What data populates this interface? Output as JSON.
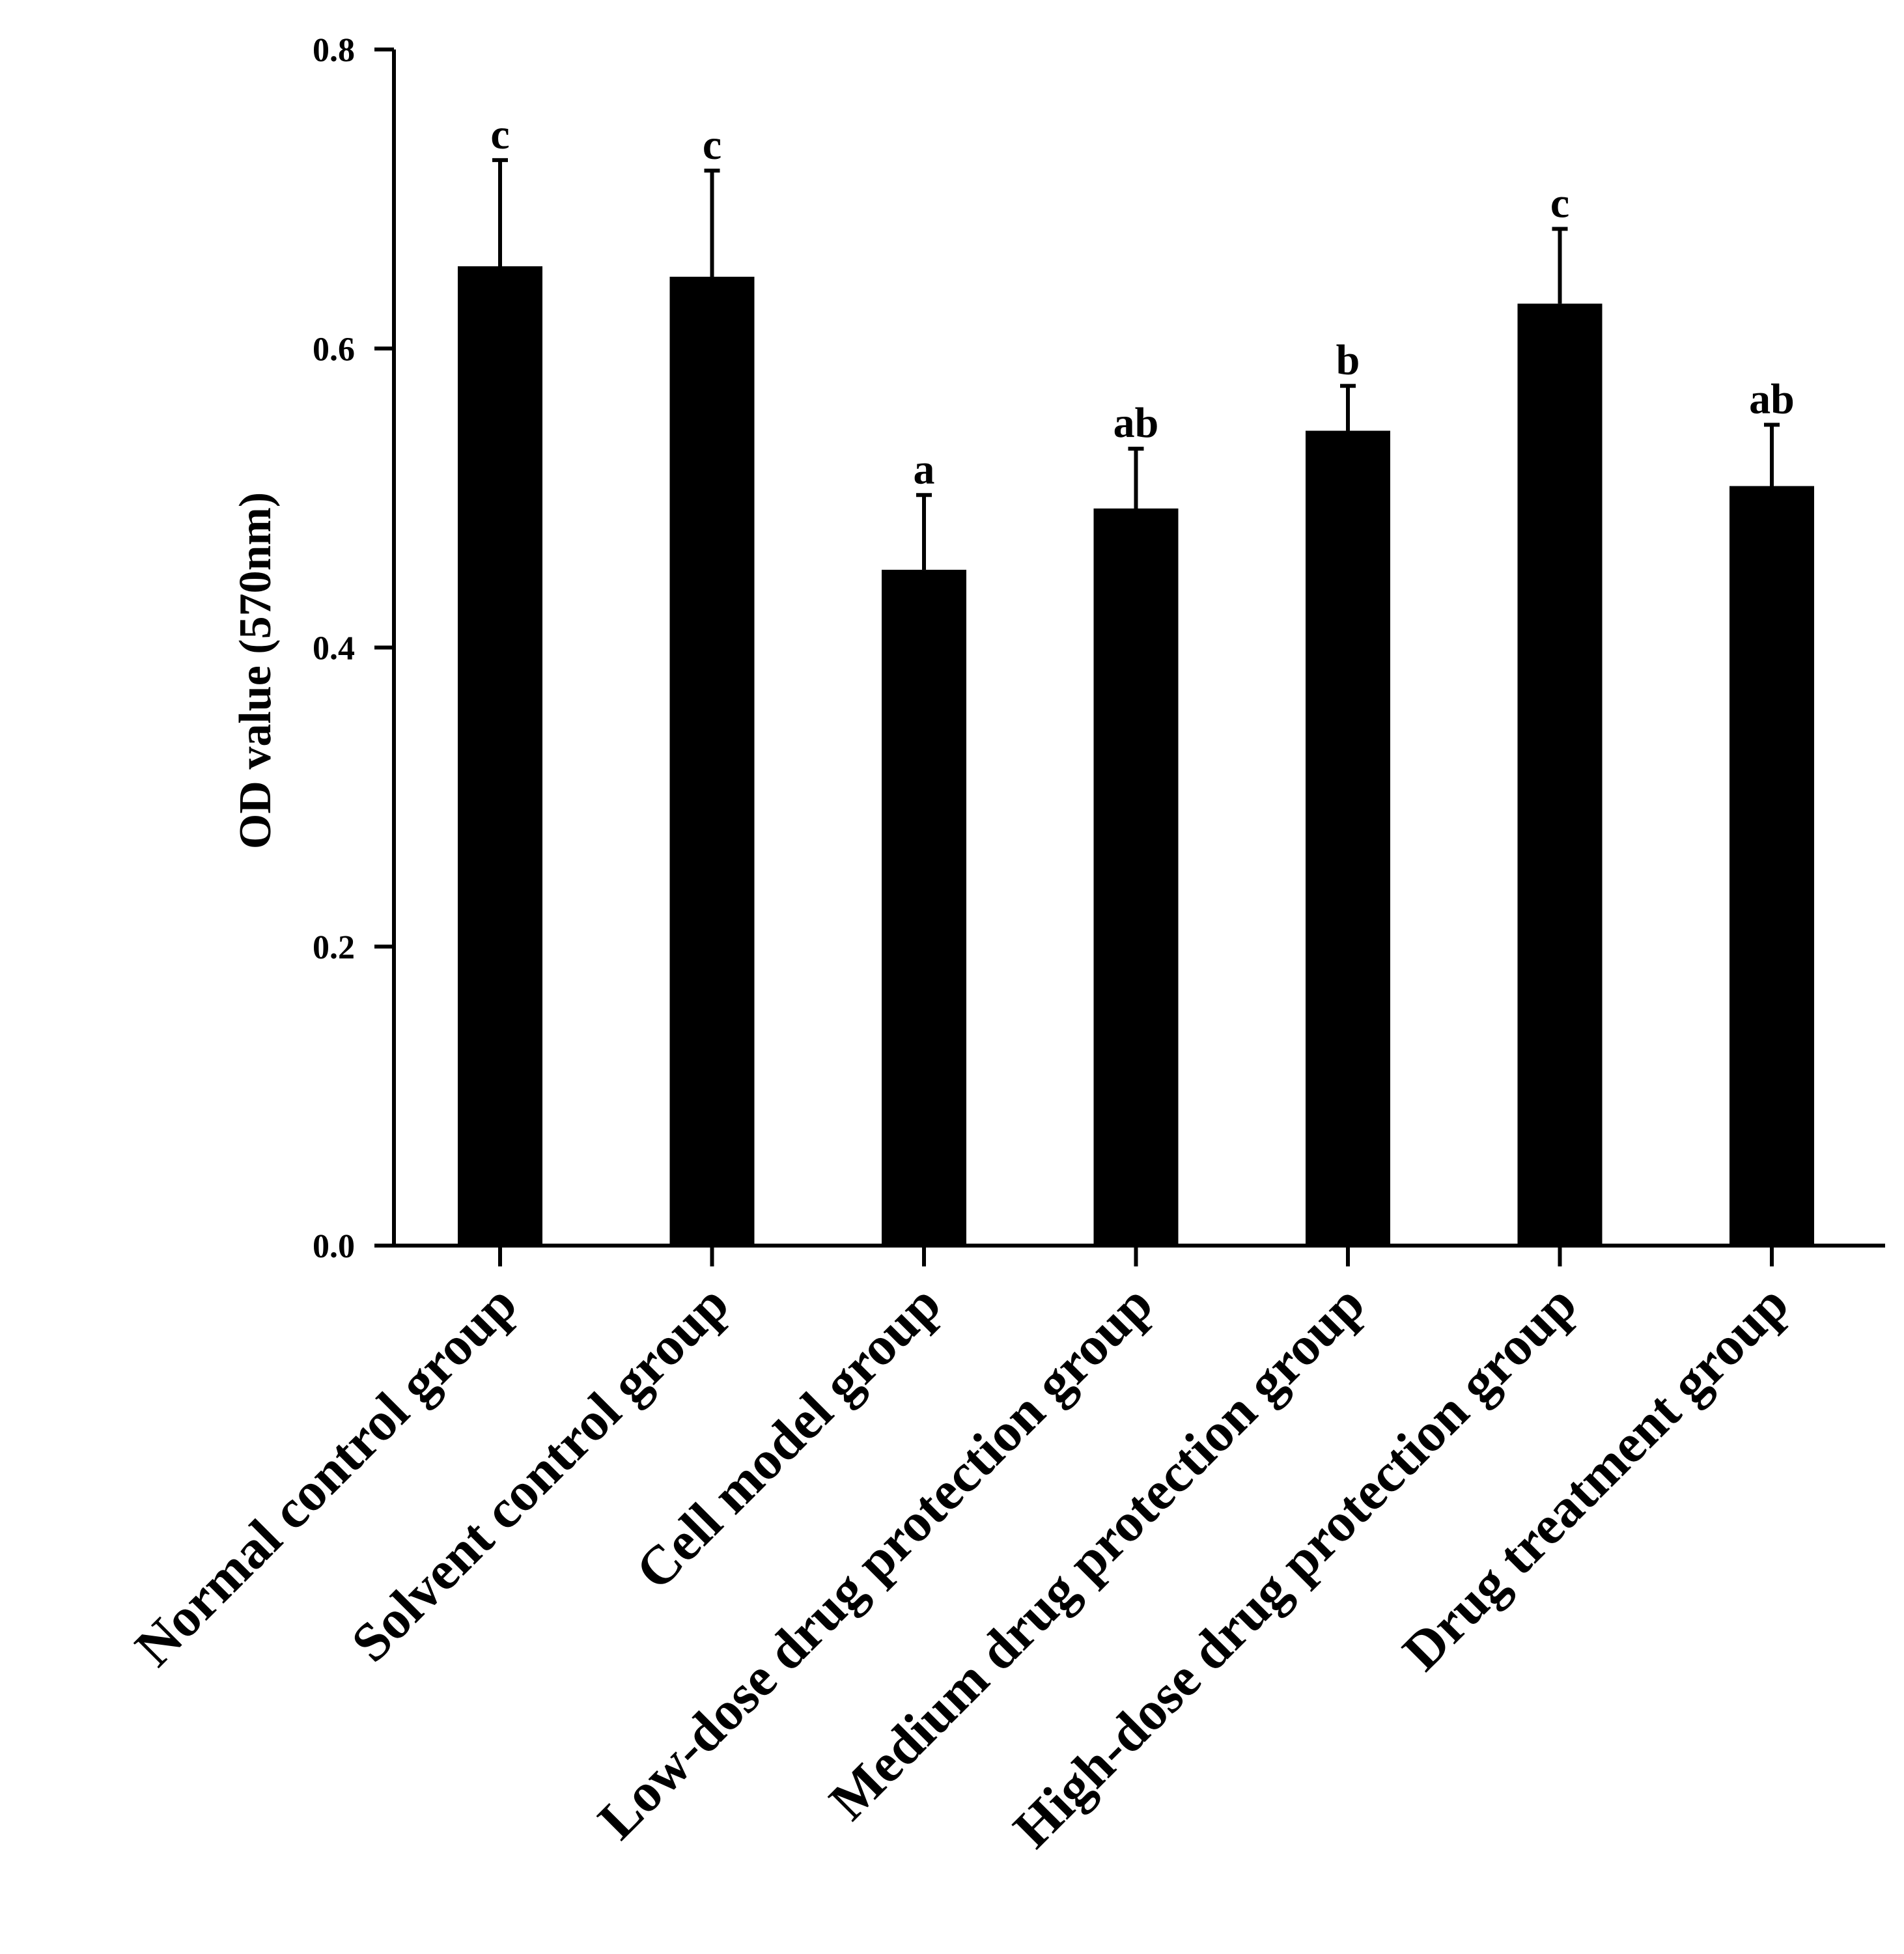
{
  "chart_data": {
    "type": "bar",
    "title": "",
    "xlabel": "",
    "ylabel": "OD  value  (570nm)",
    "ylim": [
      0,
      0.8
    ],
    "yticks": [
      0.0,
      0.2,
      0.4,
      0.6,
      0.8
    ],
    "ytick_labels": [
      "0.0",
      "0.2",
      "0.4",
      "0.6",
      "0.8"
    ],
    "grid": false,
    "legend": "none",
    "bar_color": "#000000",
    "categories": [
      "Normal control group",
      "Solvent control group",
      "Cell model group",
      "Low-dose drug protection group",
      "Medium drug protection group",
      "High-dose drug protection group",
      "Drug treatment group"
    ],
    "values": [
      0.655,
      0.648,
      0.452,
      0.493,
      0.545,
      0.63,
      0.508
    ],
    "errors": [
      0.071,
      0.071,
      0.05,
      0.04,
      0.03,
      0.05,
      0.041
    ],
    "significance": [
      "c",
      "c",
      "a",
      "ab",
      "b",
      "c",
      "ab"
    ]
  }
}
